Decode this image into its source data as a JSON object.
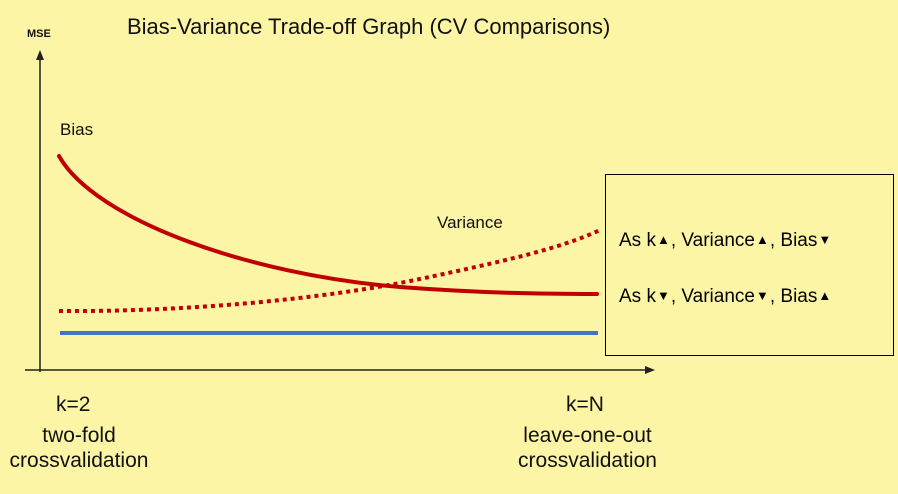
{
  "title": "Bias-Variance Trade-off Graph (CV Comparisons)",
  "y_axis_label": "MSE",
  "curves": {
    "bias_label": "Bias",
    "variance_label": "Variance",
    "bias_color": "#c00000",
    "variance_color": "#c00000",
    "baseline_color": "#4472c4"
  },
  "x_left": {
    "k": "k=2",
    "line1": "two-fold",
    "line2": "crossvalidation"
  },
  "x_right": {
    "k": "k=N",
    "line1": "leave-one-out",
    "line2": "crossvalidation"
  },
  "legend": {
    "line1": {
      "a": "As k",
      "a_arrow": "up-arrow-icon",
      "b": ", Variance",
      "b_arrow": "up-arrow-icon",
      "c": ", Bias",
      "c_arrow": "down-arrow-icon"
    },
    "line2": {
      "a": "As k",
      "a_arrow": "down-arrow-icon",
      "b": ", Variance",
      "b_arrow": "down-arrow-icon",
      "c": ", Bias",
      "c_arrow": "up-arrow-icon"
    }
  }
}
